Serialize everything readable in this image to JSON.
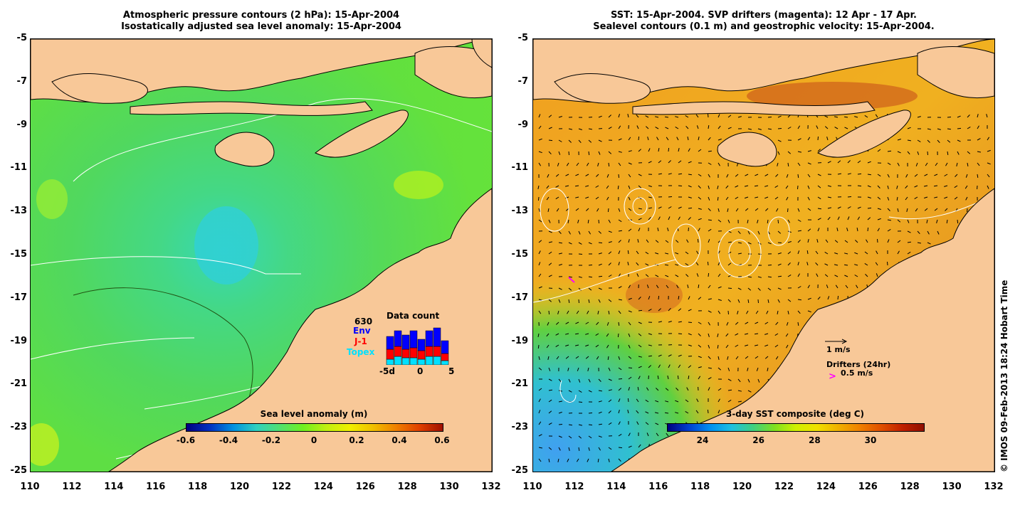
{
  "left_panel": {
    "title_line1": "Atmospheric pressure contours (2 hPa): 15-Apr-2004",
    "title_line2": "Isostatically adjusted sea level anomaly: 15-Apr-2004",
    "colorbar": {
      "title": "Sea level anomaly (m)",
      "ticks": [
        "-0.6",
        "-0.4",
        "-0.2",
        "0",
        "0.2",
        "0.4",
        "0.6"
      ],
      "colors": [
        "#000080",
        "#0030c0",
        "#0090e0",
        "#30d0c0",
        "#50e070",
        "#70f020",
        "#c0f010",
        "#f0f000",
        "#f0c000",
        "#f08000",
        "#e04000",
        "#a01000"
      ]
    },
    "data_count": {
      "title": "Data count",
      "total": "630",
      "legend": [
        {
          "label": "Env",
          "color": "#0000ff"
        },
        {
          "label": "J-1",
          "color": "#ff0000"
        },
        {
          "label": "Topex",
          "color": "#00e0ff"
        }
      ],
      "x_ticks": [
        "-5d",
        "0",
        "5"
      ]
    }
  },
  "right_panel": {
    "title_line1": "SST: 15-Apr-2004. SVP drifters (magenta): 12 Apr - 17 Apr.",
    "title_line2": "Sealevel contours (0.1 m) and geostrophic velocity: 15-Apr-2004.",
    "colorbar": {
      "title": "3-day SST composite (deg C)",
      "ticks": [
        "24",
        "26",
        "28",
        "30"
      ],
      "colors": [
        "#000080",
        "#0040d0",
        "#0090f0",
        "#20c0e0",
        "#40d080",
        "#80e020",
        "#d0f000",
        "#f0e000",
        "#f0b000",
        "#f08000",
        "#e05000",
        "#c02000",
        "#901000"
      ]
    },
    "velocity_legend": "1 m/s",
    "drifters_legend": "Drifters (24hr)",
    "drifters_speed": "0.5 m/s"
  },
  "axes": {
    "y_ticks": [
      "-5",
      "-7",
      "-9",
      "-11",
      "-13",
      "-15",
      "-17",
      "-19",
      "-21",
      "-23",
      "-25"
    ],
    "x_ticks": [
      "110",
      "112",
      "114",
      "116",
      "118",
      "120",
      "122",
      "124",
      "126",
      "128",
      "130",
      "132"
    ]
  },
  "credit": "© IMOS 09-Feb-2013 18:24 Hobart Time",
  "colors": {
    "land": "#f8c898",
    "sea_left": "#5ad64a",
    "sea_right": "#f0a020"
  }
}
